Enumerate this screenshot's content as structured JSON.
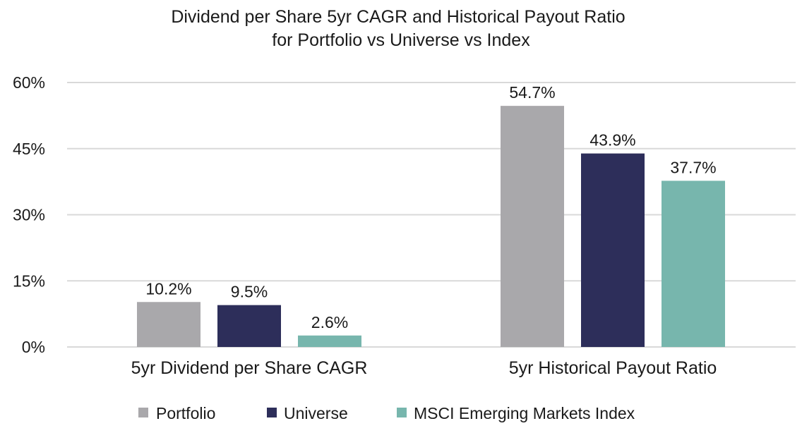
{
  "chart_data": {
    "type": "bar",
    "title_lines": [
      "Dividend per Share 5yr CAGR and Historical Payout Ratio",
      "for Portfolio vs Universe vs Index"
    ],
    "categories": [
      "5yr Dividend per Share CAGR",
      "5yr Historical Payout Ratio"
    ],
    "series": [
      {
        "name": "Portfolio",
        "values": [
          10.2,
          54.7
        ],
        "labels": [
          "10.2%",
          "54.7%"
        ],
        "color": "#a9a8ab"
      },
      {
        "name": "Universe",
        "values": [
          9.5,
          43.9
        ],
        "labels": [
          "9.5%",
          "43.9%"
        ],
        "color": "#2d2e5a"
      },
      {
        "name": "MSCI Emerging Markets Index",
        "values": [
          2.6,
          37.7
        ],
        "labels": [
          "2.6%",
          "37.7%"
        ],
        "color": "#77b6ad"
      }
    ],
    "y_ticks": [
      0,
      15,
      30,
      45,
      60
    ],
    "y_tick_labels": [
      "0%",
      "15%",
      "30%",
      "45%",
      "60%"
    ],
    "ylim": [
      0,
      60
    ],
    "grid": true,
    "gridline_color": "#d9d9d9",
    "legend_position": "bottom"
  }
}
